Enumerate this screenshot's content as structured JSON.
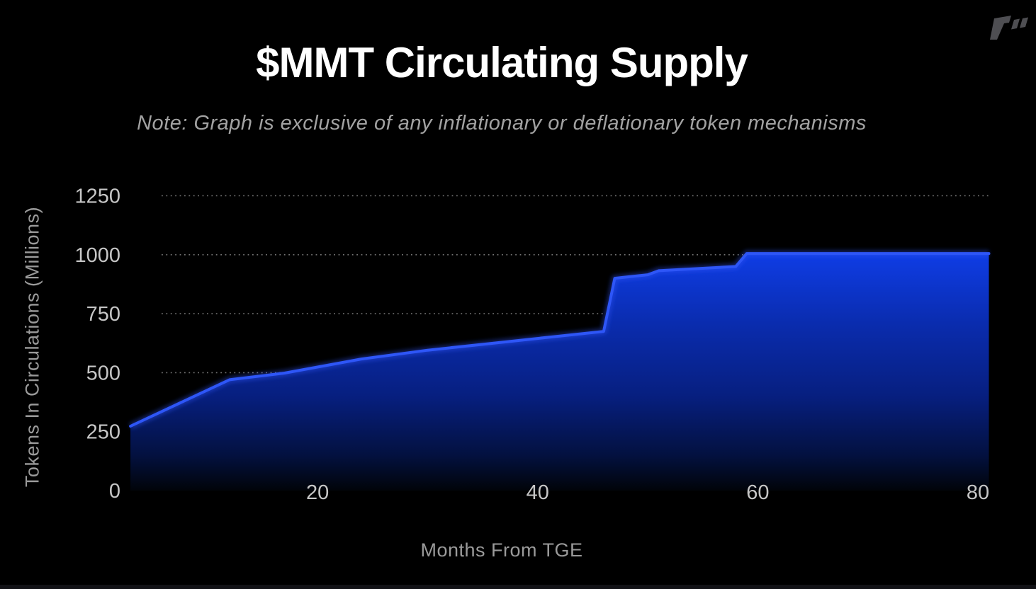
{
  "header": {
    "title": "$MMT Circulating Supply",
    "note": "Note: Graph is exclusive of any inflationary or deflationary token mechanisms"
  },
  "brand": {
    "logo_icon": "slanted-seven-double-tick-mark",
    "color": "#4e4e52"
  },
  "chart_data": {
    "type": "area",
    "title": "$MMT Circulating Supply",
    "subtitle": "Note: Graph is exclusive of any inflationary or deflationary token mechanisms",
    "xlabel": "Months From TGE",
    "ylabel": "Tokens In Circulations (Millions)",
    "series_name": "$MMT circulating supply (millions of tokens)",
    "x": [
      3,
      12,
      17,
      24,
      30,
      36,
      42,
      46,
      47,
      50,
      51,
      58,
      59,
      81
    ],
    "y": [
      273,
      470,
      498,
      558,
      595,
      625,
      655,
      675,
      900,
      915,
      932,
      950,
      1005,
      1005
    ],
    "xticks": [
      0,
      20,
      40,
      60,
      80
    ],
    "yticks": [
      0,
      250,
      500,
      750,
      1000,
      1250
    ],
    "xlim": [
      0,
      82
    ],
    "ylim": [
      0,
      1350
    ],
    "grid": "horizontal dotted gridlines",
    "legend": "none",
    "colors": {
      "background": "#000000",
      "line": "#2e56f7",
      "fill_top": "#0f3de6",
      "fill_mid": "#0a2cae",
      "fill_low": "#071f80",
      "fill_bottom": "#010409",
      "grid": "#ffffff",
      "tick_text": "#c6c6c6",
      "axis_text": "#9a9a9a",
      "title_text": "#ffffff",
      "note_text": "#a2a2a2"
    }
  }
}
